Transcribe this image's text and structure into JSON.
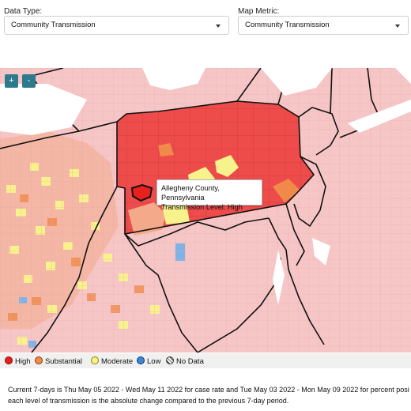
{
  "controls": {
    "data_type_label": "Data Type:",
    "data_type_value": "Community Transmission",
    "map_metric_label": "Map Metric:",
    "map_metric_value": "Community Transmission"
  },
  "zoom": {
    "in_label": "+",
    "out_label": "-"
  },
  "tooltip": {
    "county": "Allegheny County, Pennsylvania",
    "level": "Transmission Level: High"
  },
  "legend": [
    {
      "label": "High",
      "color": "#e8211d"
    },
    {
      "label": "Substantial",
      "color": "#f08a4b"
    },
    {
      "label": "Moderate",
      "color": "#f7f28b"
    },
    {
      "label": "Low",
      "color": "#3a87d6"
    },
    {
      "label": "No Data",
      "color": "hatched"
    }
  ],
  "footnote": {
    "line1": "Current 7-days is Thu May 05 2022 - Wed May 11 2022 for case rate and Tue May 03 2022 - Mon May 09 2022 for percent posi",
    "line2": "each level of transmission is the absolute change compared to the previous 7-day period."
  },
  "colors": {
    "high": "#ee4b4b",
    "high_selected": "#e8211d",
    "substantial": "#f08a4b",
    "moderate": "#f7f28b",
    "low": "#3a87d6",
    "background_counties": "#f6c6c6",
    "zoom_button": "#2c7a8c"
  }
}
